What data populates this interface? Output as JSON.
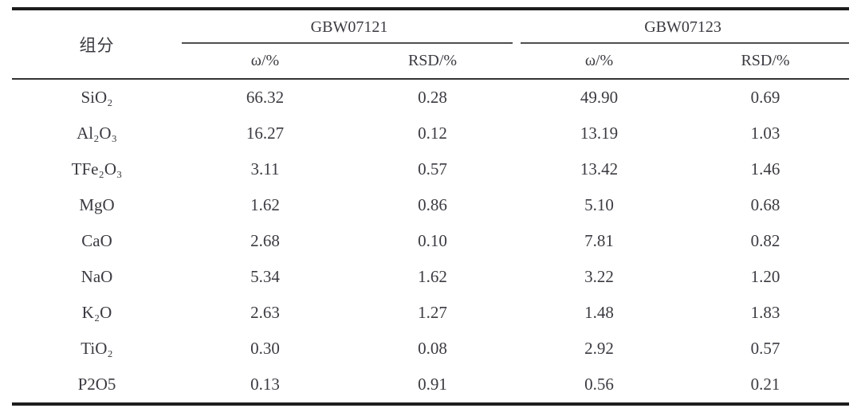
{
  "page": {
    "background": "#ffffff",
    "text_color": "#3a3a41"
  },
  "colors": {
    "rule_heavy": "#1d1d1d",
    "rule_light": "#323232",
    "group_underline": "#4e4e4e"
  },
  "table": {
    "component_header": "组分",
    "groups": [
      {
        "label": "GBW07121",
        "sub": [
          "ω/%",
          "RSD/%"
        ]
      },
      {
        "label": "GBW07123",
        "sub": [
          "ω/%",
          "RSD/%"
        ]
      }
    ],
    "rows": [
      {
        "component": "SiO₂",
        "values": [
          "66.32",
          "0.28",
          "49.90",
          "0.69"
        ]
      },
      {
        "component": "Al₂O₃",
        "values": [
          "16.27",
          "0.12",
          "13.19",
          "1.03"
        ]
      },
      {
        "component": "TFe₂O₃",
        "values": [
          "3.11",
          "0.57",
          "13.42",
          "1.46"
        ]
      },
      {
        "component": "MgO",
        "values": [
          "1.62",
          "0.86",
          "5.10",
          "0.68"
        ]
      },
      {
        "component": "CaO",
        "values": [
          "2.68",
          "0.10",
          "7.81",
          "0.82"
        ]
      },
      {
        "component": "NaO",
        "values": [
          "5.34",
          "1.62",
          "3.22",
          "1.20"
        ]
      },
      {
        "component": "K₂O",
        "values": [
          "2.63",
          "1.27",
          "1.48",
          "1.83"
        ]
      },
      {
        "component": "TiO₂",
        "values": [
          "0.30",
          "0.08",
          "2.92",
          "0.57"
        ]
      },
      {
        "component": "P2O5",
        "values": [
          "0.13",
          "0.91",
          "0.56",
          "0.21"
        ]
      }
    ]
  },
  "chart_data": {
    "type": "table",
    "columns": [
      "组分",
      "GBW07121 ω/%",
      "GBW07121 RSD/%",
      "GBW07123 ω/%",
      "GBW07123 RSD/%"
    ],
    "rows": [
      [
        "SiO₂",
        66.32,
        0.28,
        49.9,
        0.69
      ],
      [
        "Al₂O₃",
        16.27,
        0.12,
        13.19,
        1.03
      ],
      [
        "TFe₂O₃",
        3.11,
        0.57,
        13.42,
        1.46
      ],
      [
        "MgO",
        1.62,
        0.86,
        5.1,
        0.68
      ],
      [
        "CaO",
        2.68,
        0.1,
        7.81,
        0.82
      ],
      [
        "NaO",
        5.34,
        1.62,
        3.22,
        1.2
      ],
      [
        "K₂O",
        2.63,
        1.27,
        1.48,
        1.83
      ],
      [
        "TiO₂",
        0.3,
        0.08,
        2.92,
        0.57
      ],
      [
        "P2O5",
        0.13,
        0.91,
        0.56,
        0.21
      ]
    ]
  }
}
